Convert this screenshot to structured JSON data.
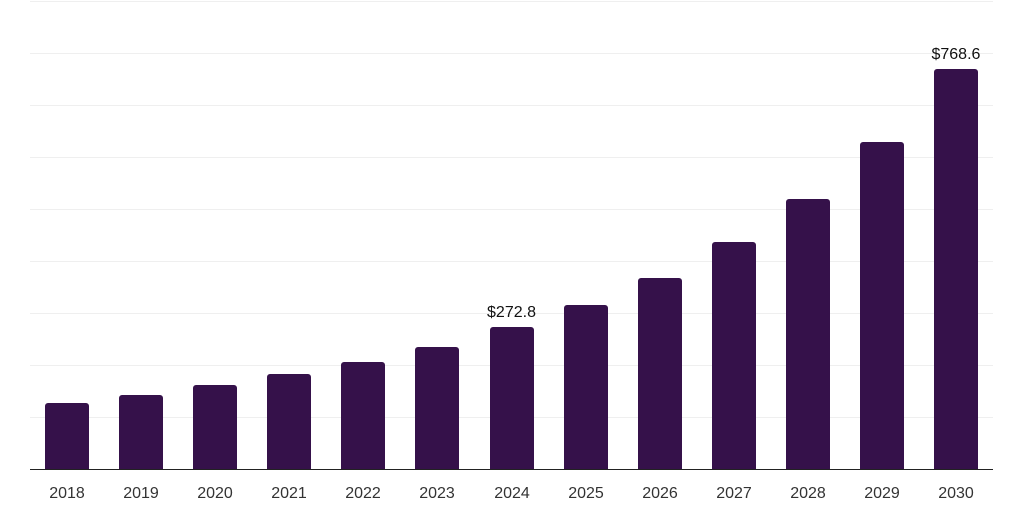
{
  "chart_data": {
    "type": "bar",
    "title": "",
    "xlabel": "",
    "ylabel": "",
    "categories": [
      "2018",
      "2019",
      "2020",
      "2021",
      "2022",
      "2023",
      "2024",
      "2025",
      "2026",
      "2027",
      "2028",
      "2029",
      "2030"
    ],
    "values": [
      126.5,
      142.0,
      161.2,
      182.4,
      205.5,
      235.0,
      272.8,
      315.3,
      367.0,
      436.0,
      520.1,
      628.6,
      768.6
    ],
    "data_labels": [
      null,
      null,
      null,
      null,
      null,
      null,
      "$272.8",
      null,
      null,
      null,
      null,
      null,
      "$768.6"
    ],
    "currency_prefix": "$",
    "ylim": [
      0,
      900
    ],
    "grid_step": 100,
    "grid": "horizontal-only",
    "y_axis_tick_labels_visible": false,
    "legend": "none"
  },
  "colors": {
    "bar": "#35114a",
    "gridline": "#efefef",
    "axis_line": "#222222",
    "x_tick_label": "#333333",
    "data_label": "#111111",
    "background": "#ffffff"
  }
}
